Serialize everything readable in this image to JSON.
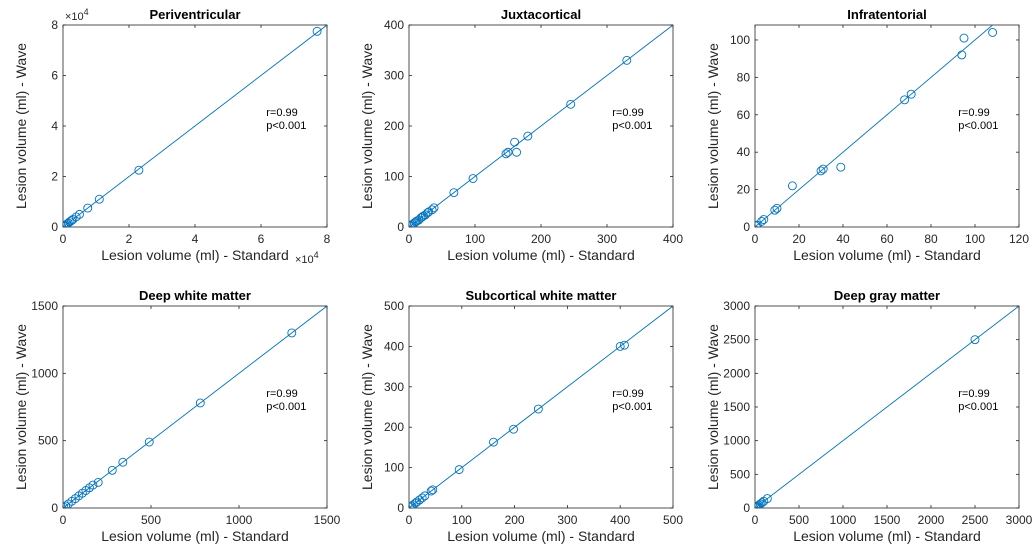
{
  "colors": {
    "series": "#0072BD",
    "axis": "#262626",
    "text": "#000000"
  },
  "chart_data": [
    {
      "type": "scatter",
      "title": "Periventricular",
      "xlabel": "Lesion volume (ml) - Standard",
      "ylabel": "Lesion volume (ml) - Wave",
      "xlim": [
        0,
        80000
      ],
      "ylim": [
        0,
        80000
      ],
      "xticks": [
        0,
        20000,
        40000,
        60000,
        80000
      ],
      "xtick_labels": [
        "0",
        "2",
        "4",
        "6",
        "8"
      ],
      "yticks": [
        0,
        20000,
        40000,
        60000,
        80000
      ],
      "ytick_labels": [
        "0",
        "2",
        "4",
        "6",
        "8"
      ],
      "x_exponent": "×10",
      "x_exponent_power": "4",
      "y_exponent": "×10",
      "y_exponent_power": "4",
      "annotation": [
        "r=0.99",
        "p<0.001"
      ],
      "fit_line": [
        [
          0,
          0
        ],
        [
          80000,
          80000
        ]
      ],
      "series": [
        {
          "x": [
            200,
            500,
            800,
            1200,
            1600,
            2100,
            2600,
            3000,
            4000,
            5000,
            7500,
            11000,
            23000,
            77000
          ],
          "y": [
            200,
            500,
            800,
            1200,
            1600,
            2100,
            2600,
            3000,
            4000,
            5000,
            7500,
            11000,
            22500,
            77500
          ]
        }
      ]
    },
    {
      "type": "scatter",
      "title": "Juxtacortical",
      "xlabel": "Lesion volume (ml) - Standard",
      "ylabel": "Lesion volume (ml) - Wave",
      "xlim": [
        0,
        400
      ],
      "ylim": [
        0,
        400
      ],
      "xticks": [
        0,
        100,
        200,
        300,
        400
      ],
      "xtick_labels": [
        "0",
        "100",
        "200",
        "300",
        "400"
      ],
      "yticks": [
        0,
        100,
        200,
        300,
        400
      ],
      "ytick_labels": [
        "0",
        "100",
        "200",
        "300",
        "400"
      ],
      "annotation": [
        "r=0.99",
        "p<0.001"
      ],
      "fit_line": [
        [
          0,
          0
        ],
        [
          400,
          400
        ]
      ],
      "series": [
        {
          "x": [
            2,
            4,
            6,
            8,
            10,
            12,
            15,
            18,
            20,
            22,
            25,
            28,
            30,
            35,
            38,
            68,
            97,
            147,
            150,
            160,
            163,
            180,
            245,
            330
          ],
          "y": [
            2,
            4,
            6,
            8,
            10,
            12,
            14,
            18,
            20,
            22,
            24,
            28,
            30,
            34,
            38,
            68,
            96,
            145,
            148,
            168,
            148,
            180,
            243,
            330
          ]
        }
      ]
    },
    {
      "type": "scatter",
      "title": "Infratentorial",
      "xlabel": "Lesion volume (ml) - Standard",
      "ylabel": "Lesion volume (ml) - Wave",
      "xlim": [
        0,
        120
      ],
      "ylim": [
        0,
        108
      ],
      "xticks": [
        0,
        20,
        40,
        60,
        80,
        100,
        120
      ],
      "xtick_labels": [
        "0",
        "20",
        "40",
        "60",
        "80",
        "100",
        "120"
      ],
      "yticks": [
        0,
        20,
        40,
        60,
        80,
        100
      ],
      "ytick_labels": [
        "0",
        "20",
        "40",
        "60",
        "80",
        "100"
      ],
      "annotation": [
        "r=0.99",
        "p<0.001"
      ],
      "fit_line": [
        [
          0,
          0
        ],
        [
          120,
          120
        ]
      ],
      "series": [
        {
          "x": [
            0.5,
            1,
            3,
            4,
            9,
            10,
            17,
            30,
            31,
            39,
            68,
            71,
            94,
            95,
            108
          ],
          "y": [
            0.5,
            1,
            3,
            4,
            9,
            10,
            22,
            30,
            31,
            32,
            68,
            71,
            92,
            101,
            104
          ]
        }
      ]
    },
    {
      "type": "scatter",
      "title": "Deep white matter",
      "xlabel": "Lesion volume (ml) - Standard",
      "ylabel": "Lesion volume (ml) - Wave",
      "xlim": [
        0,
        1500
      ],
      "ylim": [
        0,
        1500
      ],
      "xticks": [
        0,
        500,
        1000,
        1500
      ],
      "xtick_labels": [
        "0",
        "500",
        "1000",
        "1500"
      ],
      "yticks": [
        0,
        500,
        1000,
        1500
      ],
      "ytick_labels": [
        "0",
        "500",
        "1000",
        "1500"
      ],
      "annotation": [
        "r=0.99",
        "p<0.001"
      ],
      "fit_line": [
        [
          0,
          0
        ],
        [
          1500,
          1500
        ]
      ],
      "series": [
        {
          "x": [
            5,
            15,
            30,
            50,
            70,
            90,
            110,
            130,
            150,
            170,
            200,
            280,
            340,
            490,
            780,
            1300
          ],
          "y": [
            5,
            15,
            30,
            50,
            70,
            90,
            110,
            130,
            150,
            170,
            190,
            280,
            340,
            490,
            780,
            1300
          ]
        }
      ]
    },
    {
      "type": "scatter",
      "title": "Subcortical white matter",
      "xlabel": "Lesion volume (ml) - Standard",
      "ylabel": "Lesion volume (ml) - Wave",
      "xlim": [
        0,
        500
      ],
      "ylim": [
        0,
        500
      ],
      "xticks": [
        0,
        100,
        200,
        300,
        400,
        500
      ],
      "xtick_labels": [
        "0",
        "100",
        "200",
        "300",
        "400",
        "500"
      ],
      "yticks": [
        0,
        100,
        200,
        300,
        400,
        500
      ],
      "ytick_labels": [
        "0",
        "100",
        "200",
        "300",
        "400",
        "500"
      ],
      "annotation": [
        "r=0.99",
        "p<0.001"
      ],
      "fit_line": [
        [
          0,
          0
        ],
        [
          500,
          500
        ]
      ],
      "series": [
        {
          "x": [
            2,
            5,
            8,
            12,
            15,
            20,
            25,
            30,
            42,
            45,
            95,
            160,
            198,
            245,
            400,
            408
          ],
          "y": [
            2,
            5,
            8,
            12,
            15,
            20,
            25,
            30,
            42,
            45,
            95,
            163,
            195,
            245,
            400,
            403
          ]
        }
      ]
    },
    {
      "type": "scatter",
      "title": "Deep gray matter",
      "xlabel": "Lesion volume (ml) - Standard",
      "ylabel": "Lesion volume (ml) - Wave",
      "xlim": [
        0,
        3000
      ],
      "ylim": [
        0,
        3000
      ],
      "xticks": [
        0,
        500,
        1000,
        1500,
        2000,
        2500,
        3000
      ],
      "xtick_labels": [
        "0",
        "500",
        "1000",
        "1500",
        "2000",
        "2500",
        "3000"
      ],
      "yticks": [
        0,
        500,
        1000,
        1500,
        2000,
        2500,
        3000
      ],
      "ytick_labels": [
        "0",
        "500",
        "1000",
        "1500",
        "2000",
        "2500",
        "3000"
      ],
      "annotation": [
        "r=0.99",
        "p<0.001"
      ],
      "fit_line": [
        [
          0,
          0
        ],
        [
          3000,
          3000
        ]
      ],
      "series": [
        {
          "x": [
            5,
            10,
            20,
            30,
            45,
            60,
            80,
            100,
            140,
            2500
          ],
          "y": [
            5,
            10,
            20,
            30,
            45,
            60,
            80,
            100,
            140,
            2500
          ]
        }
      ]
    }
  ]
}
